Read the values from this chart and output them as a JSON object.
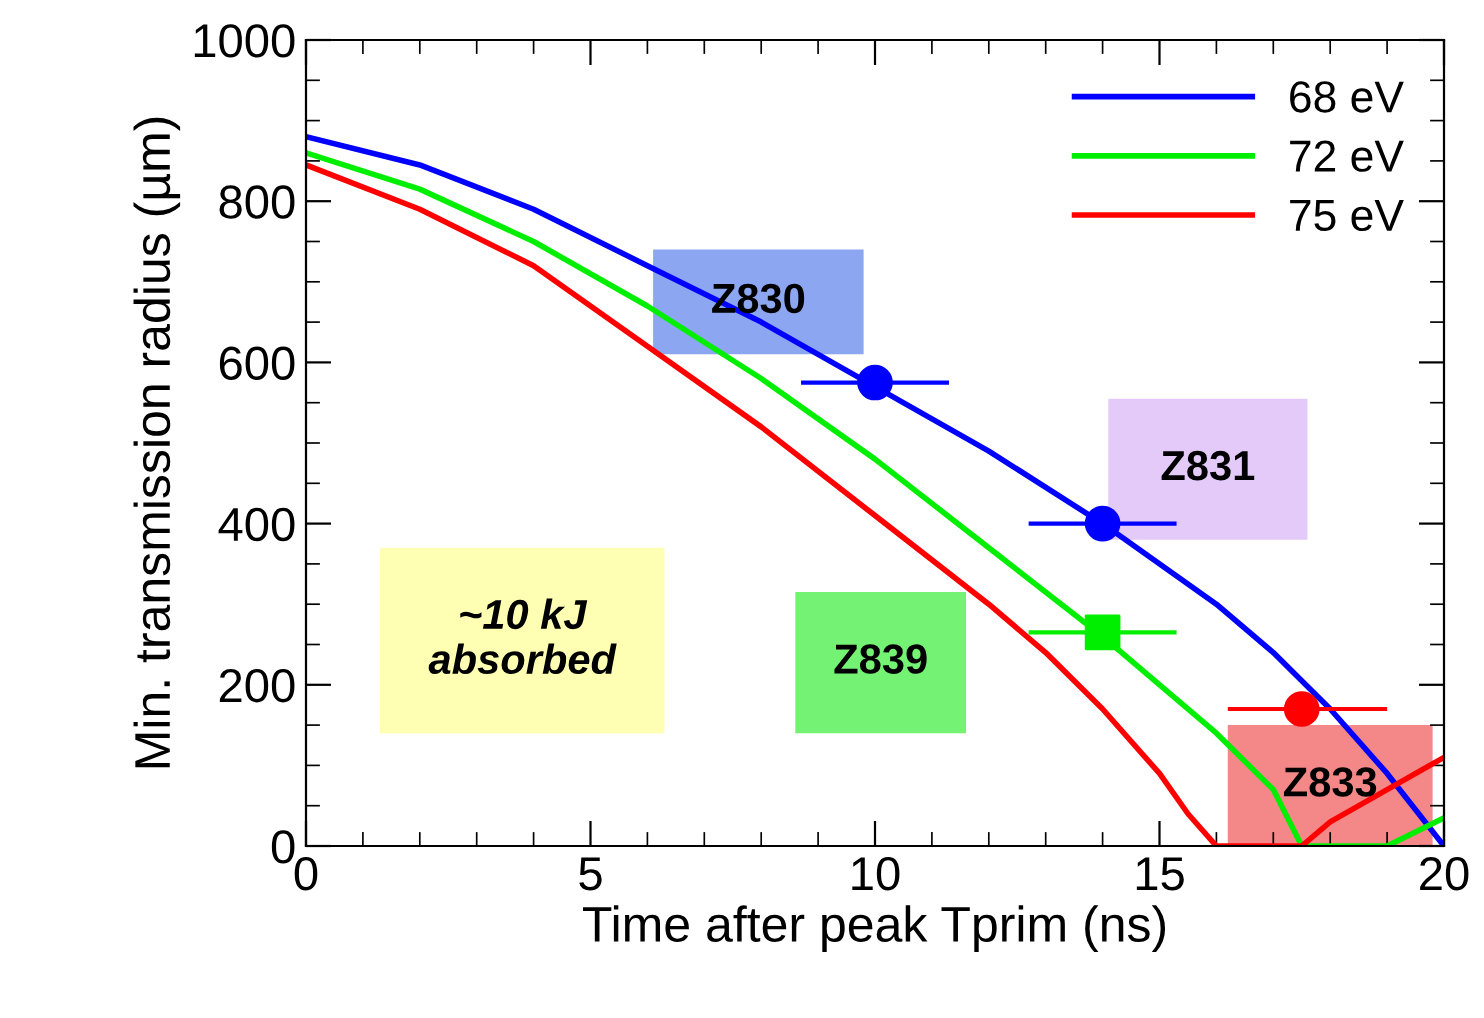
{
  "chart_data": {
    "type": "line",
    "xlabel": "Time after peak Tprim (ns)",
    "ylabel": "Min. transmission radius (µm)",
    "xlim": [
      0,
      20
    ],
    "ylim": [
      0,
      1000
    ],
    "xticks": [
      0,
      5,
      10,
      15,
      20
    ],
    "yticks": [
      0,
      200,
      400,
      600,
      800,
      1000
    ],
    "grid": false,
    "legend": "top right",
    "marker": "none",
    "line_style": "solid",
    "series": [
      {
        "name": "68 eV",
        "color": "#0000ff",
        "x": [
          0,
          2,
          4,
          6,
          8,
          10,
          12,
          14,
          16,
          17,
          18,
          19,
          19.5,
          20
        ],
        "values": [
          880,
          845,
          790,
          720,
          650,
          570,
          490,
          400,
          300,
          240,
          170,
          90,
          45,
          0
        ]
      },
      {
        "name": "72 eV",
        "color": "#00ee00",
        "x": [
          0,
          2,
          4,
          6,
          8,
          10,
          12,
          14,
          16,
          17,
          17.5,
          19,
          20
        ],
        "values": [
          860,
          815,
          750,
          670,
          580,
          480,
          370,
          260,
          140,
          70,
          0,
          0,
          35
        ]
      },
      {
        "name": "75 eV",
        "color": "#ff0000",
        "x": [
          0,
          2,
          4,
          6,
          8,
          10,
          12,
          13,
          14,
          15,
          15.5,
          16,
          17.5,
          18,
          19,
          20
        ],
        "values": [
          845,
          790,
          720,
          620,
          520,
          410,
          300,
          240,
          170,
          90,
          40,
          0,
          0,
          30,
          70,
          110
        ]
      },
      {
        "type": "scatter",
        "color": "#0000ff",
        "x": [
          10,
          14
        ],
        "values": [
          575,
          400
        ],
        "xerrors": [
          1.3,
          1.3
        ],
        "marker": "circle"
      },
      {
        "type": "scatter",
        "color": "#00ee00",
        "x": [
          14
        ],
        "values": [
          265
        ],
        "xerrors": [
          1.3
        ],
        "marker": "square"
      },
      {
        "type": "scatter",
        "color": "#ff0000",
        "x": [
          17.5
        ],
        "values": [
          170
        ],
        "xerrors": [
          [
            16.2,
            19
          ]
        ],
        "marker": "circle"
      }
    ],
    "annotations": [
      "Z830",
      "Z831",
      "Z839",
      "Z833",
      "~10 kJ\nabsorbed"
    ]
  }
}
